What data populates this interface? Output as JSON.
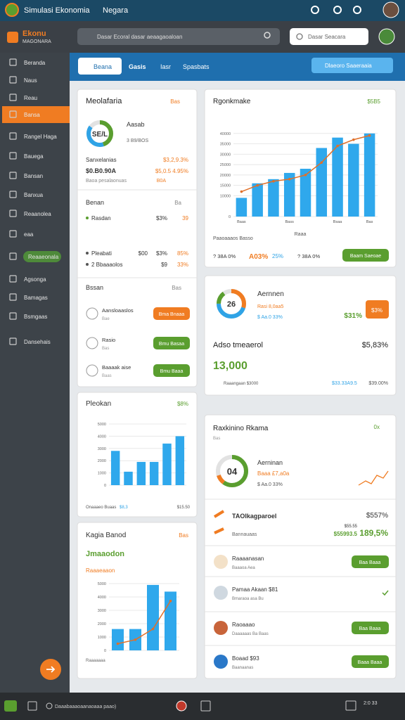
{
  "topbar": {
    "title": "Simulasi Ekonomia",
    "subtitle": "Negara"
  },
  "header": {
    "logo": [
      "Ekonu",
      "MAGONARA"
    ],
    "search": "Dasar Ecoral dasar aeaagaoaloan",
    "search_button": "Dasar Seacara"
  },
  "sidebar": [
    "Beranda",
    "Naus",
    "Reau",
    "Bansa",
    "Rangel Haga",
    "Bauega",
    "Bansan",
    "Banxua",
    "Reaanolea",
    "eaa",
    "Reaaeonala",
    "Agsonga",
    "Bamagas",
    "Bsmgaas",
    "Dansehais"
  ],
  "tabs": [
    "Beana",
    "Gasis",
    "Iasr",
    "Spasbats"
  ],
  "tab_button": "Dlaeoro Saaeraaia",
  "card_summary": {
    "title": "Meolafaria",
    "action": "Bas",
    "donut_label": "SE/L",
    "donut_title": "Aasab",
    "donut_sub": "3 B9/BOS",
    "rows": [
      [
        "Sanxelanias",
        "$3,2,9.3%"
      ],
      [
        "$0.B0.90A",
        "$5,0.5 4.95%"
      ],
      [
        "Baoa pesalaonuas",
        "B0A"
      ]
    ]
  },
  "card_benan": {
    "title": "Benan",
    "action": "Ba",
    "rows": [
      [
        "Rasdan",
        "$3%",
        "39"
      ],
      [
        "Pleabati",
        "$00",
        "$3%",
        "85%"
      ],
      [
        "2 Bbaaaolos",
        "$9",
        "33%"
      ]
    ]
  },
  "card_bssan": {
    "title": "Bssan",
    "action": "Bas",
    "items": [
      {
        "name": "Aansloaaslos",
        "sub": "Bae",
        "button": "Bma Bnaaa"
      },
      {
        "name": "Rasio",
        "sub": "Bas",
        "button": "Bmu Basaa"
      },
      {
        "name": "Baaaak aise",
        "sub": "Baas",
        "button": "Bmu Baaa"
      }
    ]
  },
  "card_pleokan": {
    "title": "Pleokan",
    "action": "$8%",
    "chart": {
      "type": "bar",
      "ylim": [
        0,
        5000
      ],
      "yticks": [
        0,
        1000,
        2000,
        3000,
        4000,
        5000
      ],
      "values": [
        2800,
        1100,
        1900,
        1900,
        3400,
        4000
      ],
      "color": "#2fa8ec"
    },
    "footer": [
      "Onaaaeo Buaas",
      "$8,3",
      "$15.50"
    ]
  },
  "card_kagia": {
    "title": "Kagia Banod",
    "action": "Bas",
    "highlight": "Jmaaodon",
    "sub": "Raaaeaaon",
    "chart": {
      "type": "bar",
      "ylim": [
        0,
        5000
      ],
      "yticks": [
        0,
        1000,
        2000,
        3000,
        4000,
        5000
      ],
      "values": [
        1600,
        1600,
        4900,
        4400
      ],
      "line_values": [
        500,
        800,
        1600,
        3700
      ],
      "color": "#2fa8ec",
      "line_color": "#e0702a"
    },
    "footer": "Raaaaaaa"
  },
  "card_revenue": {
    "title": "Rgonkmake",
    "action": "$5B5",
    "chart": {
      "type": "bar",
      "ylim": [
        0,
        45000
      ],
      "yticks": [
        0,
        10000,
        15000,
        20000,
        25000,
        30000,
        35000,
        40000
      ],
      "categories": [
        "Baas",
        null,
        null,
        "Bass",
        null,
        null,
        "Bsaa",
        null,
        "Bas"
      ],
      "values": [
        9000,
        16000,
        18000,
        21000,
        23000,
        33000,
        38000,
        35000,
        40000
      ],
      "line_values": [
        12000,
        15000,
        17000,
        18000,
        20000,
        26000,
        34000,
        37000,
        39000
      ],
      "color": "#2fa8ec",
      "line_color": "#e0702a"
    },
    "caption": "Paaoaaaos Basso",
    "caption2": "Raaa",
    "stats": [
      "? 38A 0%",
      "A03%",
      "25%",
      "? 38A 0%"
    ],
    "button": "Baam Saeoae"
  },
  "card_balance": {
    "donut_label": "26",
    "title": "Aernnen",
    "sub1": "Rasi 8,0aa5",
    "sub2": "$ Aa.0 33%",
    "badge": "$31%",
    "button": "$3%",
    "title2": "Adso tmeaerol",
    "value2": "$5,83%",
    "big": "13,000",
    "foot": [
      "Raaangaan $3000",
      "$33.33A9.5",
      "$39.00%"
    ]
  },
  "card_ranking": {
    "title": "Raxkinino Rkama",
    "sub": "Bas",
    "action": "0x",
    "donut_label": "04",
    "donut_title": "Aerninan",
    "donut_sub1": "Baaa £7,a0a",
    "donut_sub2": "$ Aa.0 33%",
    "row": {
      "name": "TAOlkagparoel",
      "sub": "Bannauaas",
      "v1": "$557%",
      "v2": "$55.55",
      "v3": "$55993.5",
      "v4": "189,5%"
    },
    "items": [
      {
        "name": "Raaaanasan",
        "sub": "Baaaoa Aea",
        "button": "Baa Baaa"
      },
      {
        "name": "Pamaa Akaan $81",
        "sub": "Bmaraoa asa Bu"
      },
      {
        "name": "Raoaaao",
        "sub": "Daaaaaas Ba Baas",
        "button": "Baa Baaa"
      },
      {
        "name": "Boaad $93",
        "sub": "Baanaanas",
        "button": "Baaa Baaa"
      }
    ]
  },
  "taskbar": {
    "app": "Daaabaaaoaanaoaaa paao)",
    "time": "2:0 33"
  }
}
